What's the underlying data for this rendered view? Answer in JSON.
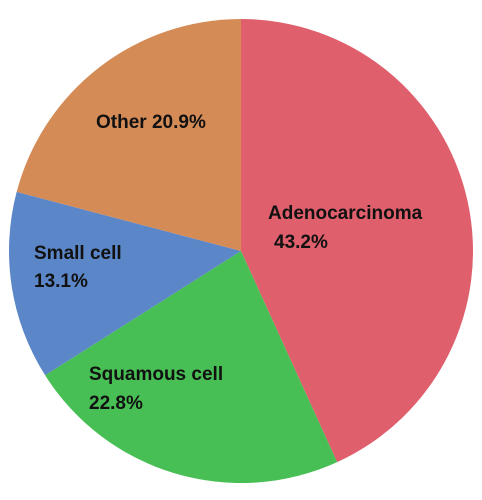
{
  "chart_data": {
    "type": "pie",
    "slices": [
      {
        "label": "Adenocarcinoma",
        "value": 43.2,
        "percent_text": "43.2%",
        "color": "#df5f6c"
      },
      {
        "label": "Squamous cell",
        "value": 22.8,
        "percent_text": "22.8%",
        "color": "#47bf54"
      },
      {
        "label": "Small cell",
        "value": 13.1,
        "percent_text": "13.1%",
        "color": "#5b86c7"
      },
      {
        "label": "Other",
        "value": 20.9,
        "percent_text": "20.9%",
        "color": "#d48b56"
      }
    ],
    "start_angle": "12 o'clock",
    "direction": "clockwise",
    "legend": "none"
  }
}
